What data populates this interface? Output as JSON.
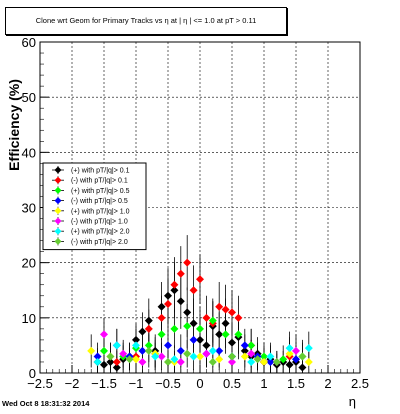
{
  "header": {
    "title": "Clone wrt Geom for Primary Tracks vs   η at | η | <= 1.0 at pT > 0.11"
  },
  "footer": {
    "timestamp": "Wed Oct  8 18:31:32 2014"
  },
  "chart_data": {
    "type": "scatter",
    "title": "Clone wrt Geom for Primary Tracks vs   η at | η | <= 1.0 at pT > 0.11",
    "xlabel": "η",
    "ylabel": "Efficiency (%)",
    "xlim": [
      -2.5,
      2.5
    ],
    "ylim": [
      0,
      60
    ],
    "xticks": [
      "−2.5",
      "−2",
      "−1.5",
      "−1",
      "−0.5",
      "0",
      "0.5",
      "1",
      "1.5",
      "2",
      "2.5"
    ],
    "yticks": [
      "0",
      "10",
      "20",
      "30",
      "40",
      "50",
      "60"
    ],
    "grid": true,
    "legend_position": "middle-left",
    "series": [
      {
        "name": "(+) with pT/|q|> 0.1",
        "color": "#000000",
        "x": [
          -1.6,
          -1.5,
          -1.4,
          -1.3,
          -1.2,
          -1.1,
          -1.0,
          -0.9,
          -0.8,
          -0.7,
          -0.6,
          -0.5,
          -0.4,
          -0.3,
          -0.2,
          -0.1,
          0.0,
          0.1,
          0.2,
          0.3,
          0.4,
          0.5,
          0.6,
          0.7,
          0.8,
          0.9,
          1.0,
          1.1,
          1.2,
          1.3,
          1.4,
          1.5,
          1.6
        ],
        "y": [
          2.0,
          1.5,
          2.0,
          1.0,
          2.5,
          3.0,
          6.0,
          7.5,
          9.5,
          4.0,
          12.0,
          14.0,
          15.0,
          13.0,
          11.0,
          9.0,
          6.0,
          5.0,
          8.5,
          7.0,
          9.0,
          5.5,
          6.5,
          4.0,
          3.0,
          3.5,
          2.0,
          2.5,
          1.5,
          2.0,
          1.5,
          2.0,
          1.0
        ],
        "err": [
          2,
          2,
          2,
          2,
          2.5,
          2.5,
          3,
          3.5,
          4,
          3,
          4.5,
          5,
          5,
          5,
          4.5,
          4.5,
          4,
          4,
          4.5,
          4,
          4.5,
          3.5,
          4,
          3,
          3,
          3,
          2.5,
          2.5,
          2,
          2,
          2,
          2,
          2
        ]
      },
      {
        "name": "(-) with pT/|q|> 0.1",
        "color": "#ff0000",
        "x": [
          -1.3,
          -1.0,
          -0.8,
          -0.6,
          -0.5,
          -0.4,
          -0.3,
          -0.2,
          -0.1,
          0.0,
          0.1,
          0.2,
          0.3,
          0.4,
          0.5,
          0.6,
          0.8,
          1.0,
          1.4
        ],
        "y": [
          2.0,
          3.0,
          8.0,
          10.0,
          12.5,
          16.0,
          18.0,
          20.0,
          15.0,
          17.0,
          10.0,
          9.0,
          12.0,
          11.5,
          11.0,
          10.0,
          5.0,
          2.0,
          3.0
        ],
        "err": [
          2,
          2.5,
          3.5,
          4,
          4.5,
          5,
          5,
          5,
          4.5,
          4.5,
          4,
          4,
          4.5,
          4.5,
          4,
          4,
          3,
          2.5,
          2.5
        ]
      },
      {
        "name": "(+) with pT/|q|> 0.5",
        "color": "#00ff00",
        "x": [
          -1.5,
          -1.2,
          -1.0,
          -0.8,
          -0.6,
          -0.4,
          -0.2,
          0.0,
          0.2,
          0.4,
          0.6,
          0.8,
          1.0,
          1.3,
          1.6
        ],
        "y": [
          4.0,
          3.0,
          4.5,
          5.0,
          7.0,
          8.0,
          8.5,
          8.0,
          9.5,
          7.0,
          7.0,
          5.0,
          3.0,
          2.5,
          3.0
        ],
        "err": [
          3,
          2.5,
          3,
          3,
          3.5,
          3.5,
          4,
          4,
          4,
          3.5,
          3.5,
          3,
          2.5,
          2.5,
          3
        ]
      },
      {
        "name": "(-) with pT/|q|> 0.5",
        "color": "#0000ff",
        "x": [
          -1.6,
          -1.3,
          -1.1,
          -0.9,
          -0.7,
          -0.5,
          -0.3,
          -0.1,
          0.1,
          0.3,
          0.5,
          0.7,
          0.9,
          1.1,
          1.5
        ],
        "y": [
          3.0,
          5.0,
          3.0,
          4.0,
          3.5,
          5.0,
          4.0,
          6.0,
          3.5,
          4.0,
          3.0,
          5.0,
          3.0,
          2.0,
          2.5
        ],
        "err": [
          2.5,
          3,
          2.5,
          3,
          2.5,
          3,
          3,
          3,
          2.5,
          3,
          2.5,
          3,
          2.5,
          2,
          2.5
        ]
      },
      {
        "name": "(+) with pT/|q|> 1.0",
        "color": "#ffff00",
        "x": [
          -1.7,
          -1.4,
          -1.0,
          -0.7,
          -0.4,
          0.0,
          0.3,
          0.7,
          1.0,
          1.4,
          1.7
        ],
        "y": [
          4.0,
          3.0,
          2.5,
          3.5,
          2.0,
          3.0,
          2.5,
          3.0,
          2.0,
          3.5,
          2.0
        ],
        "err": [
          3,
          2.5,
          2.5,
          3,
          2,
          2.5,
          2,
          2.5,
          2,
          3,
          2
        ]
      },
      {
        "name": "(-) with pT/|q|> 1.0",
        "color": "#ff00ff",
        "x": [
          -1.5,
          -1.2,
          -0.9,
          -0.6,
          -0.3,
          0.1,
          0.5,
          0.8,
          1.2,
          1.5
        ],
        "y": [
          7.0,
          3.5,
          2.0,
          3.0,
          2.0,
          3.5,
          2.0,
          3.5,
          2.0,
          4.0
        ],
        "err": [
          3,
          2.5,
          2,
          2.5,
          2,
          2.5,
          2,
          2.5,
          2,
          3
        ]
      },
      {
        "name": "(+) with pT/|q|> 2.0",
        "color": "#00ffff",
        "x": [
          -1.6,
          -1.3,
          -1.0,
          -0.7,
          -0.4,
          -0.1,
          0.2,
          0.5,
          0.8,
          1.1,
          1.4,
          1.7
        ],
        "y": [
          2.0,
          5.0,
          5.0,
          3.0,
          2.5,
          3.0,
          4.0,
          3.0,
          2.0,
          3.0,
          4.5,
          4.5
        ],
        "err": [
          2.5,
          3,
          3,
          2.5,
          2.5,
          2.5,
          3,
          2.5,
          2,
          2.5,
          3,
          3
        ]
      },
      {
        "name": "(-) with pT/|q|> 2.0",
        "color": "#66cc33",
        "x": [
          -1.4,
          -1.1,
          -0.8,
          -0.5,
          -0.2,
          0.2,
          0.5,
          0.9,
          1.2,
          1.6
        ],
        "y": [
          3.0,
          2.5,
          4.0,
          2.0,
          3.5,
          2.0,
          3.0,
          2.5,
          2.0,
          3.0
        ],
        "err": [
          2.5,
          2,
          3,
          2,
          2.5,
          2,
          2.5,
          2,
          2,
          2.5
        ]
      }
    ]
  }
}
